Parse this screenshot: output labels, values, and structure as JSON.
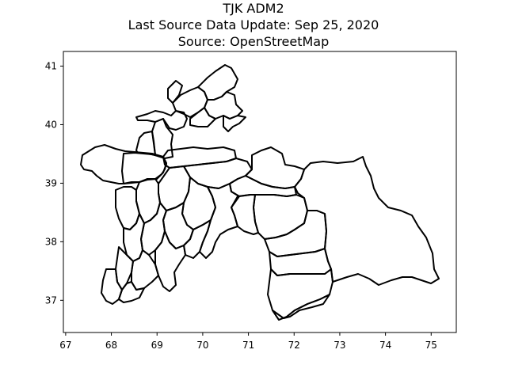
{
  "figure": {
    "title_lines": [
      "TJK ADM2",
      "Last Source Data Update: Sep 25, 2020",
      "Source: OpenStreetMap"
    ]
  },
  "chart_data": {
    "type": "map",
    "title": "TJK ADM2\nLast Source Data Update: Sep 25, 2020\nSource: OpenStreetMap",
    "xlabel": "",
    "ylabel": "",
    "xlim": [
      66.95,
      75.55
    ],
    "ylim": [
      36.45,
      41.25
    ],
    "x_ticks": [
      67,
      68,
      69,
      70,
      71,
      72,
      73,
      74,
      75
    ],
    "y_ticks": [
      37,
      38,
      39,
      40,
      41
    ],
    "grid": false,
    "legend": "none",
    "stroke_color": "#000000",
    "fill_color": "none"
  }
}
